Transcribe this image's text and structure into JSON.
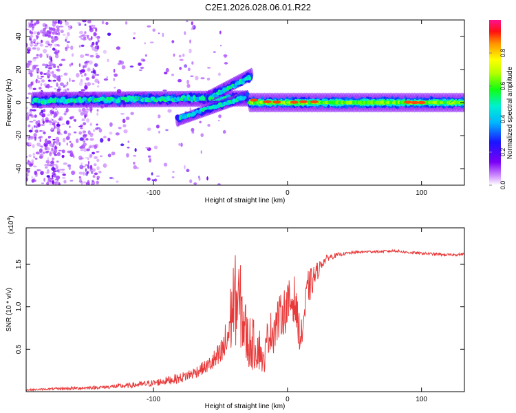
{
  "title": "C2E1.2026.028.06.01.R22",
  "colors": {
    "snr_line": "#e83a3a",
    "axis": "#000000",
    "background": "#ffffff"
  },
  "chart_data": [
    {
      "type": "heatmap",
      "name": "spectrogram",
      "xlabel": "Height of straight line (km)",
      "ylabel": "Frequency (Hz)",
      "xlim": [
        -195,
        132
      ],
      "ylim": [
        -50,
        50
      ],
      "x_ticks": [
        -100,
        0,
        100
      ],
      "x_tick_labels": [
        "-100",
        "0",
        "100"
      ],
      "y_ticks": [
        -40,
        -20,
        0,
        20,
        40
      ],
      "y_tick_labels": [
        "-40",
        "-20",
        "0",
        "20",
        "40"
      ],
      "colorbar": {
        "label": "Normalized spectral amplitude",
        "range": [
          0,
          1
        ],
        "ticks": [
          0.0,
          0.2,
          0.4,
          0.6,
          0.8
        ],
        "tick_labels": [
          "0.0",
          "0.2",
          "0.4",
          "0.6",
          "0.8"
        ],
        "colormap": "rainbow"
      },
      "features": [
        {
          "name": "main-band-left",
          "x": [
            -190,
            -30
          ],
          "freq_center": 1.5,
          "freq_halfwidth": 3,
          "amplitude": 0.45
        },
        {
          "name": "rising-branch",
          "x": [
            -60,
            -27
          ],
          "freq_start": 2,
          "freq_end": 17,
          "amplitude": 0.4
        },
        {
          "name": "falling-branch",
          "x": [
            -82,
            -30
          ],
          "freq_start": -10,
          "freq_end": 4,
          "amplitude": 0.35
        },
        {
          "name": "stable-band-right",
          "x": [
            -28,
            132
          ],
          "freq_center": 0,
          "freq_halfwidth": 3,
          "amplitude": 0.85
        }
      ]
    },
    {
      "type": "line",
      "name": "snr",
      "xlabel": "Height of straight line (km)",
      "ylabel": "SNR (10 * v/v)",
      "scale_label": "(x10",
      "scale_exponent": "4",
      "xlim": [
        -195,
        132
      ],
      "ylim": [
        0.0,
        1.93
      ],
      "x_ticks": [
        -100,
        0,
        100
      ],
      "x_tick_labels": [
        "-100",
        "0",
        "100"
      ],
      "y_ticks": [
        0.5,
        1.0,
        1.5
      ],
      "y_tick_labels": [
        "0.5",
        "1.0",
        "1.5"
      ],
      "series": [
        {
          "name": "SNR",
          "x": [
            -195,
            -180,
            -160,
            -140,
            -120,
            -100,
            -90,
            -80,
            -70,
            -60,
            -50,
            -45,
            -40,
            -35,
            -30,
            -25,
            -20,
            -18,
            -15,
            -10,
            -5,
            0,
            5,
            10,
            15,
            20,
            25,
            30,
            40,
            50,
            60,
            70,
            80,
            90,
            100,
            110,
            120,
            132
          ],
          "values": [
            0.02,
            0.03,
            0.04,
            0.05,
            0.07,
            0.1,
            0.13,
            0.16,
            0.22,
            0.3,
            0.42,
            0.6,
            1.1,
            1.0,
            0.6,
            0.55,
            0.5,
            0.3,
            0.65,
            0.75,
            0.9,
            1.0,
            1.1,
            0.6,
            1.2,
            1.35,
            1.5,
            1.58,
            1.62,
            1.64,
            1.65,
            1.65,
            1.66,
            1.64,
            1.63,
            1.62,
            1.61,
            1.62
          ],
          "noise_envelope": [
            0.01,
            0.01,
            0.02,
            0.02,
            0.03,
            0.04,
            0.05,
            0.06,
            0.07,
            0.08,
            0.18,
            0.3,
            0.55,
            0.5,
            0.35,
            0.3,
            0.25,
            0.15,
            0.2,
            0.3,
            0.25,
            0.3,
            0.28,
            0.2,
            0.22,
            0.15,
            0.06,
            0.04,
            0.02,
            0.015,
            0.015,
            0.015,
            0.015,
            0.015,
            0.015,
            0.015,
            0.015,
            0.015
          ]
        }
      ]
    }
  ]
}
